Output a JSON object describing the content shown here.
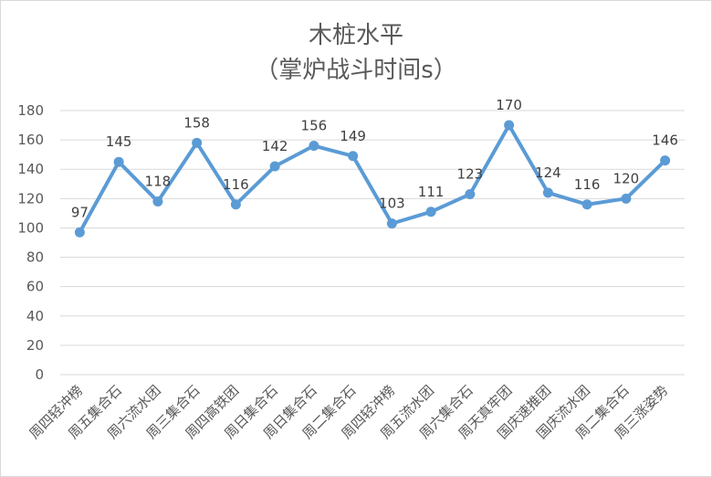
{
  "chart_data": {
    "type": "line",
    "title": "木桩水平",
    "subtitle": "（掌炉战斗时间s）",
    "categories": [
      "周四轻冲榜",
      "周五集合石",
      "周六流水团",
      "周三集合石",
      "周四高铁团",
      "周日集合石",
      "周日集合石",
      "周二集合石",
      "周四轻冲榜",
      "周五流水团",
      "周六集合石",
      "周天真牢团",
      "国庆速推团",
      "国庆流水团",
      "周二集合石",
      "周三涨姿势"
    ],
    "series": [
      {
        "values": [
          97,
          145,
          118,
          158,
          116,
          142,
          156,
          149,
          103,
          111,
          123,
          170,
          124,
          116,
          120,
          146
        ]
      }
    ],
    "ylim": [
      0,
      180
    ],
    "yticks": [
      0,
      20,
      40,
      60,
      80,
      100,
      120,
      140,
      160,
      180
    ],
    "grid": true,
    "legend": "none",
    "line_color": "#5b9bd5",
    "grid_color": "#d9d9d9"
  }
}
